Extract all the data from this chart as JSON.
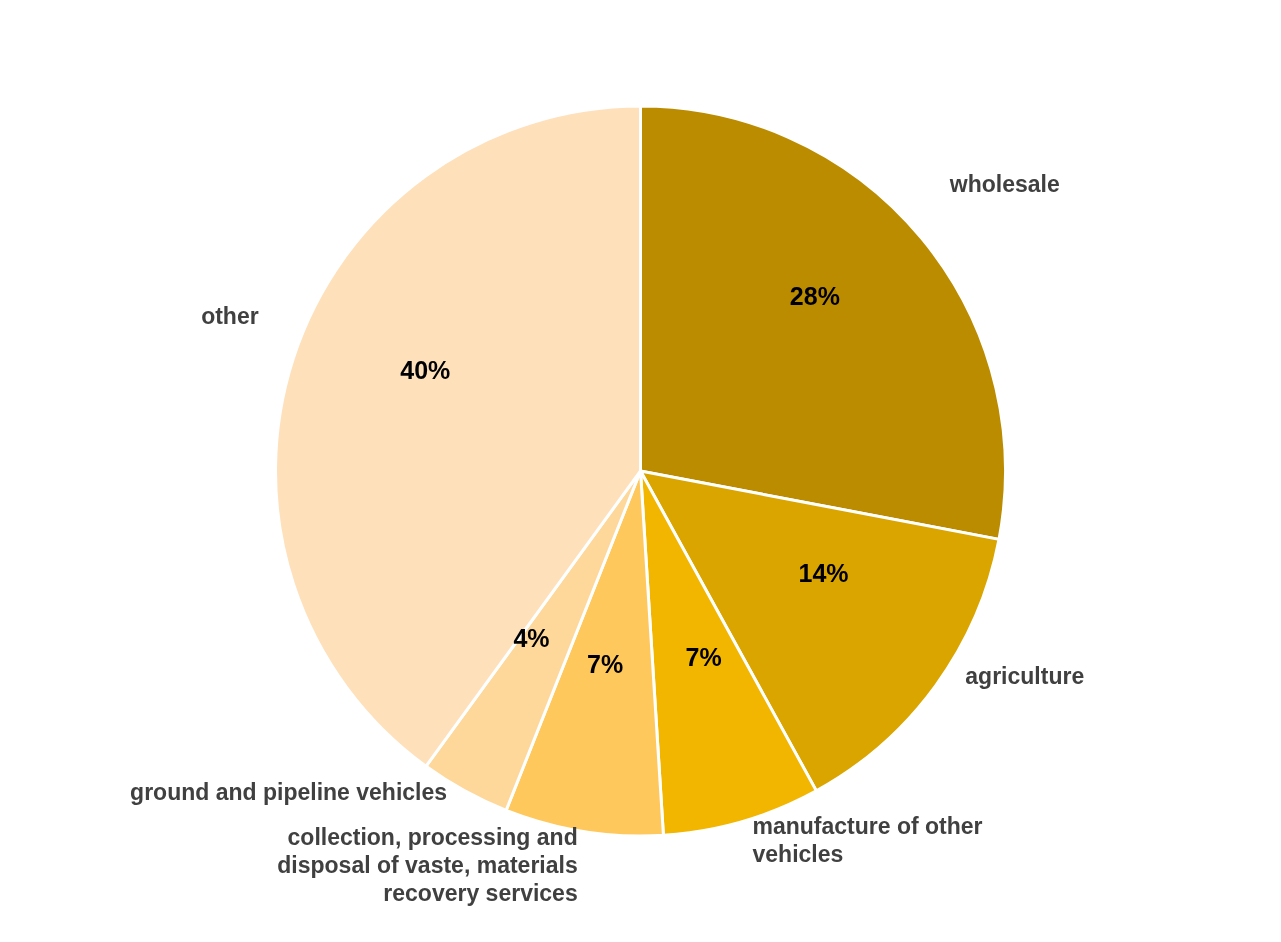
{
  "chart_data": {
    "type": "pie",
    "categories": [
      "wholesale",
      "agriculture",
      "manufacture of other vehicles",
      "collection, processing and disposal of vaste, materials recovery services",
      "ground and pipeline vehicles",
      "other"
    ],
    "values": [
      28,
      14,
      7,
      7,
      4,
      40
    ],
    "value_labels": [
      "28%",
      "14%",
      "7%",
      "7%",
      "4%",
      "40%"
    ],
    "colors": [
      "#bc8c00",
      "#dba500",
      "#f2b600",
      "#fec85c",
      "#fed89a",
      "#fee0bb"
    ]
  }
}
